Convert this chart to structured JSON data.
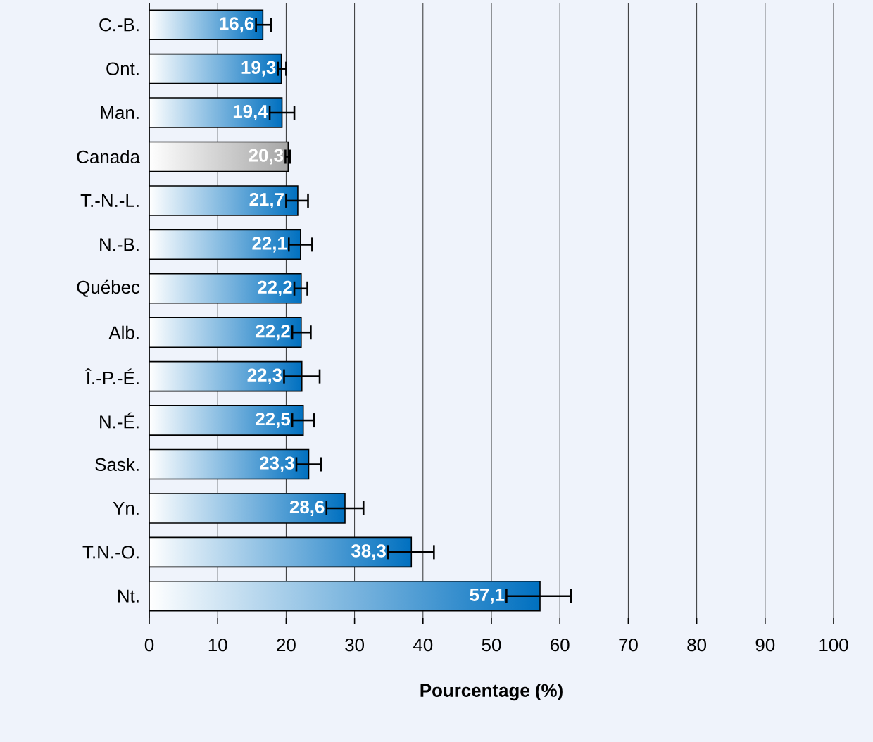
{
  "chart_data": {
    "type": "bar",
    "orientation": "horizontal",
    "xlabel": "Pourcentage (%)",
    "categories": [
      "C.-B.",
      "Ont.",
      "Man.",
      "Canada",
      "T.-N.-L.",
      "N.-B.",
      "Québec",
      "Alb.",
      "Î.-P.-É.",
      "N.-É.",
      "Sask.",
      "Yn.",
      "T.N.-O.",
      "Nt."
    ],
    "values": [
      16.6,
      19.3,
      19.4,
      20.3,
      21.7,
      22.1,
      22.2,
      22.2,
      22.3,
      22.5,
      23.3,
      28.6,
      38.3,
      57.1
    ],
    "value_labels": [
      "16,6",
      "19,3",
      "19,4",
      "20,3",
      "21,7",
      "22,1",
      "22,2",
      "22,2",
      "22,3",
      "22,5",
      "23,3",
      "28,6",
      "38,3",
      "57,1"
    ],
    "errors": [
      [
        15.6,
        17.8
      ],
      [
        18.8,
        20.0
      ],
      [
        17.6,
        21.2
      ],
      [
        19.9,
        20.6
      ],
      [
        20.0,
        23.2
      ],
      [
        20.4,
        23.8
      ],
      [
        21.2,
        23.1
      ],
      [
        20.9,
        23.6
      ],
      [
        19.7,
        24.9
      ],
      [
        20.9,
        24.1
      ],
      [
        21.5,
        25.1
      ],
      [
        25.9,
        31.3
      ],
      [
        34.9,
        41.6
      ],
      [
        52.2,
        61.6
      ]
    ],
    "colors": [
      "#0070c0",
      "#0070c0",
      "#0070c0",
      "#a6a6a6",
      "#0070c0",
      "#0070c0",
      "#0070c0",
      "#0070c0",
      "#0070c0",
      "#0070c0",
      "#0070c0",
      "#0070c0",
      "#0070c0",
      "#0070c0"
    ],
    "xlim": [
      0,
      100
    ],
    "xticks": [
      0,
      10,
      20,
      30,
      40,
      50,
      60,
      70,
      80,
      90,
      100
    ],
    "grid": "x"
  }
}
